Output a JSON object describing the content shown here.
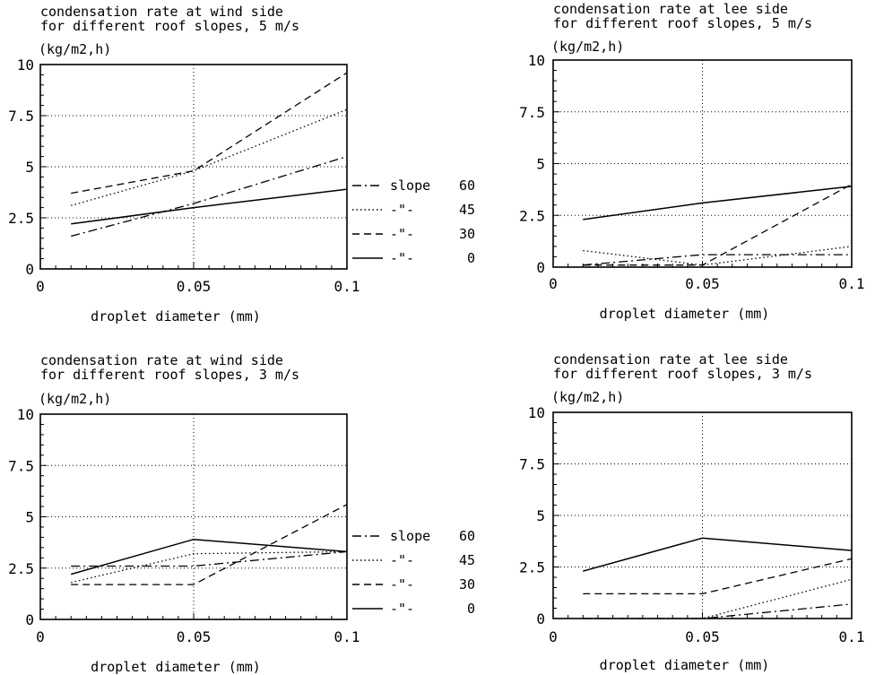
{
  "legend": {
    "entries": [
      {
        "label": "slope",
        "value": "60",
        "style": "dashdot"
      },
      {
        "label": "-\"-",
        "value": "45",
        "style": "dotted"
      },
      {
        "label": "-\"-",
        "value": "30",
        "style": "dashed"
      },
      {
        "label": "-\"-",
        "value": "0",
        "style": "solid"
      }
    ]
  },
  "chart_data": [
    {
      "type": "line",
      "title": [
        "condensation rate at wind side",
        "for different roof slopes, 5 m/s"
      ],
      "ylabel": "(kg/m2,h)",
      "xlabel": "droplet diameter (mm)",
      "xlim": [
        0,
        0.1
      ],
      "ylim": [
        0,
        10
      ],
      "xticks": [
        "0",
        "0.05",
        "0.1"
      ],
      "yticks": [
        "0",
        "2.5",
        "5",
        "7.5",
        "10"
      ],
      "grid": true,
      "x": [
        0.01,
        0.05,
        0.1
      ],
      "series": [
        {
          "name": "slope 60",
          "style": "dashdot",
          "values": [
            1.6,
            3.2,
            5.5
          ]
        },
        {
          "name": "45",
          "style": "dotted",
          "values": [
            3.1,
            4.8,
            7.8
          ]
        },
        {
          "name": "30",
          "style": "dashed",
          "values": [
            3.7,
            4.8,
            9.6
          ]
        },
        {
          "name": "0",
          "style": "solid",
          "values": [
            2.2,
            3.0,
            3.9
          ]
        }
      ]
    },
    {
      "type": "line",
      "title": [
        "condensation rate at lee side",
        "for different roof slopes, 5 m/s"
      ],
      "ylabel": "(kg/m2,h)",
      "xlabel": "droplet diameter (mm)",
      "xlim": [
        0,
        0.1
      ],
      "ylim": [
        0,
        10
      ],
      "xticks": [
        "0",
        "0.05",
        "0.1"
      ],
      "yticks": [
        "0",
        "2.5",
        "5",
        "7.5",
        "10"
      ],
      "grid": true,
      "x": [
        0.01,
        0.05,
        0.1
      ],
      "series": [
        {
          "name": "slope 60",
          "style": "dashdot",
          "values": [
            0.1,
            0.6,
            0.6
          ]
        },
        {
          "name": "45",
          "style": "dotted",
          "values": [
            0.8,
            0.1,
            1.0
          ]
        },
        {
          "name": "30",
          "style": "dashed",
          "values": [
            0.1,
            0.1,
            4.0
          ]
        },
        {
          "name": "0",
          "style": "solid",
          "values": [
            2.3,
            3.1,
            3.9
          ]
        }
      ]
    },
    {
      "type": "line",
      "title": [
        "condensation rate at wind side",
        "for different roof slopes, 3 m/s"
      ],
      "ylabel": "(kg/m2,h)",
      "xlabel": "droplet diameter (mm)",
      "xlim": [
        0,
        0.1
      ],
      "ylim": [
        0,
        10
      ],
      "xticks": [
        "0",
        "0.05",
        "0.1"
      ],
      "yticks": [
        "0",
        "2.5",
        "5",
        "7.5",
        "10"
      ],
      "grid": true,
      "x": [
        0.01,
        0.05,
        0.1
      ],
      "series": [
        {
          "name": "slope 60",
          "style": "dashdot",
          "values": [
            2.6,
            2.6,
            3.3
          ]
        },
        {
          "name": "45",
          "style": "dotted",
          "values": [
            1.8,
            3.2,
            3.3
          ]
        },
        {
          "name": "30",
          "style": "dashed",
          "values": [
            1.7,
            1.7,
            5.6
          ]
        },
        {
          "name": "0",
          "style": "solid",
          "values": [
            2.2,
            3.9,
            3.3
          ]
        }
      ]
    },
    {
      "type": "line",
      "title": [
        "condensation rate at lee side",
        "for different roof slopes, 3 m/s"
      ],
      "ylabel": "(kg/m2,h)",
      "xlabel": "droplet diameter (mm)",
      "xlim": [
        0,
        0.1
      ],
      "ylim": [
        0,
        10
      ],
      "xticks": [
        "0",
        "0.05",
        "0.1"
      ],
      "yticks": [
        "0",
        "2.5",
        "5",
        "7.5",
        "10"
      ],
      "grid": true,
      "x": [
        0.01,
        0.05,
        0.1
      ],
      "series": [
        {
          "name": "slope 60",
          "style": "dashdot",
          "values": [
            0.0,
            0.0,
            0.7
          ]
        },
        {
          "name": "45",
          "style": "dotted",
          "values": [
            0.0,
            0.0,
            1.9
          ]
        },
        {
          "name": "30",
          "style": "dashed",
          "values": [
            1.2,
            1.2,
            2.9
          ]
        },
        {
          "name": "0",
          "style": "solid",
          "values": [
            2.3,
            3.9,
            3.3
          ]
        }
      ]
    }
  ]
}
